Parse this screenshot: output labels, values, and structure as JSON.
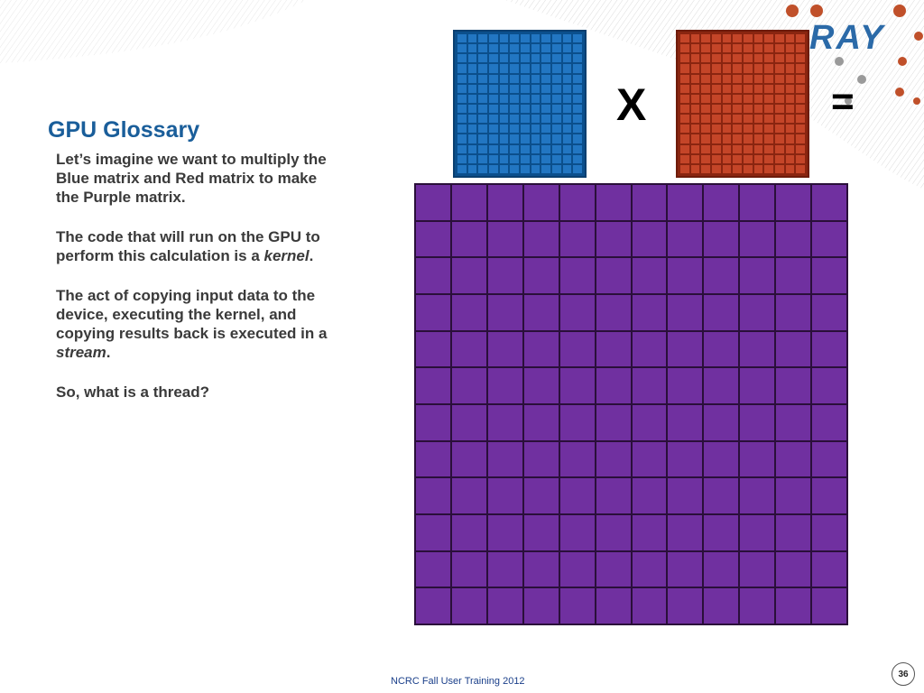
{
  "slide": {
    "logo_text": "RAY",
    "title": "GPU Glossary",
    "paragraphs": [
      {
        "before": "Let’s imagine we want to multiply the Blue matrix and Red matrix to make the Purple matrix.",
        "italic": "",
        "after": ""
      },
      {
        "before": "The code that will run on the GPU to perform this calculation is a ",
        "italic": "kernel",
        "after": "."
      },
      {
        "before": "The act of copying input data to the device, executing the kernel, and copying results back is executed in a ",
        "italic": "stream",
        "after": "."
      },
      {
        "before": "So, what is a thread?",
        "italic": "",
        "after": ""
      }
    ]
  },
  "diagram": {
    "operator_times": "X",
    "operator_equals": "=",
    "blue_matrix": {
      "cols": 12,
      "rows": 14,
      "color": "#2276c2"
    },
    "red_matrix": {
      "cols": 12,
      "rows": 14,
      "color": "#c44528"
    },
    "purple_matrix": {
      "cols": 12,
      "rows": 12,
      "color": "#7030a0"
    }
  },
  "footer": {
    "text": "NCRC Fall User Training 2012",
    "page_number": "36"
  }
}
